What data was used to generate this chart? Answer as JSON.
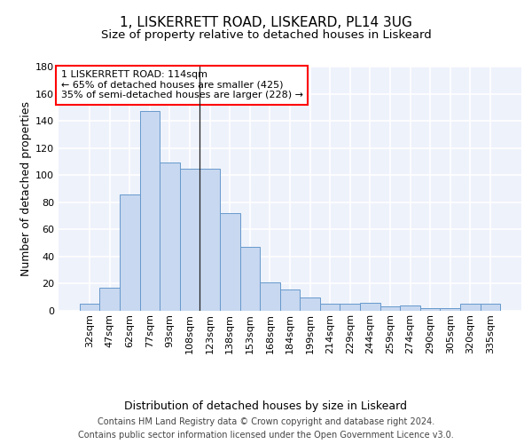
{
  "title1": "1, LISKERRETT ROAD, LISKEARD, PL14 3UG",
  "title2": "Size of property relative to detached houses in Liskeard",
  "xlabel": "Distribution of detached houses by size in Liskeard",
  "ylabel": "Number of detached properties",
  "categories": [
    "32sqm",
    "47sqm",
    "62sqm",
    "77sqm",
    "93sqm",
    "108sqm",
    "123sqm",
    "138sqm",
    "153sqm",
    "168sqm",
    "184sqm",
    "199sqm",
    "214sqm",
    "229sqm",
    "244sqm",
    "259sqm",
    "274sqm",
    "290sqm",
    "305sqm",
    "320sqm",
    "335sqm"
  ],
  "values": [
    5,
    17,
    86,
    147,
    109,
    105,
    105,
    72,
    47,
    21,
    16,
    10,
    5,
    5,
    6,
    3,
    4,
    2,
    2,
    5,
    5
  ],
  "bar_color": "#c8d8f0",
  "bar_edge_color": "#6699cc",
  "annotation_text": "1 LISKERRETT ROAD: 114sqm\n← 65% of detached houses are smaller (425)\n35% of semi-detached houses are larger (228) →",
  "annotation_box_color": "white",
  "annotation_box_edge_color": "red",
  "ylim": [
    0,
    180
  ],
  "yticks": [
    0,
    20,
    40,
    60,
    80,
    100,
    120,
    140,
    160,
    180
  ],
  "footer": "Contains HM Land Registry data © Crown copyright and database right 2024.\nContains public sector information licensed under the Open Government Licence v3.0.",
  "bg_color": "#eef2fb",
  "grid_color": "white",
  "title1_fontsize": 11,
  "title2_fontsize": 9.5,
  "xlabel_fontsize": 9,
  "ylabel_fontsize": 9,
  "tick_fontsize": 8,
  "footer_fontsize": 7,
  "annot_fontsize": 8
}
